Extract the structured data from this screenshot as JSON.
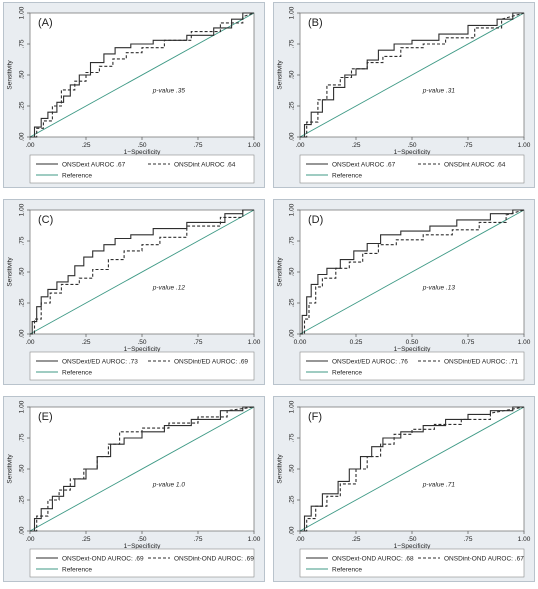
{
  "chart_data": [
    {
      "type": "line",
      "panel_label": "(A)",
      "xlabel": "1−Specificity",
      "ylabel": "Sensitivity",
      "xticks": [
        ".00",
        ".25",
        ".50",
        ".75",
        "1.00"
      ],
      "yticks": [
        ".00",
        ".25",
        ".50",
        ".75",
        "1.00"
      ],
      "xlim": [
        0,
        1
      ],
      "ylim": [
        0,
        1
      ],
      "grid": false,
      "legend_position": "bottom",
      "annotation": "p-value .35",
      "series": [
        {
          "name": "ONSDext AUROC .67",
          "style": "solid",
          "color": "#2e2e2e",
          "x": [
            0,
            0.02,
            0.02,
            0.05,
            0.05,
            0.08,
            0.08,
            0.12,
            0.12,
            0.15,
            0.15,
            0.18,
            0.18,
            0.22,
            0.22,
            0.27,
            0.27,
            0.33,
            0.33,
            0.38,
            0.38,
            0.45,
            0.45,
            0.55,
            0.55,
            0.7,
            0.7,
            0.82,
            0.82,
            0.9,
            0.9,
            0.95,
            0.95,
            1
          ],
          "y": [
            0,
            0,
            0.08,
            0.08,
            0.15,
            0.15,
            0.2,
            0.2,
            0.28,
            0.28,
            0.33,
            0.33,
            0.42,
            0.42,
            0.5,
            0.5,
            0.6,
            0.6,
            0.67,
            0.67,
            0.72,
            0.72,
            0.75,
            0.75,
            0.78,
            0.78,
            0.82,
            0.82,
            0.88,
            0.88,
            0.95,
            0.95,
            1,
            1
          ]
        },
        {
          "name": "ONSDint AUROC .64",
          "style": "dashed",
          "color": "#2e2e2e",
          "x": [
            0,
            0.03,
            0.03,
            0.06,
            0.06,
            0.1,
            0.1,
            0.14,
            0.14,
            0.2,
            0.2,
            0.25,
            0.25,
            0.31,
            0.31,
            0.37,
            0.37,
            0.43,
            0.43,
            0.5,
            0.5,
            0.6,
            0.6,
            0.72,
            0.72,
            0.85,
            0.85,
            0.95,
            0.95,
            1
          ],
          "y": [
            0,
            0,
            0.07,
            0.07,
            0.13,
            0.13,
            0.25,
            0.25,
            0.38,
            0.38,
            0.45,
            0.45,
            0.52,
            0.52,
            0.57,
            0.57,
            0.63,
            0.63,
            0.68,
            0.68,
            0.72,
            0.72,
            0.78,
            0.78,
            0.85,
            0.85,
            0.92,
            0.92,
            0.97,
            1
          ]
        },
        {
          "name": "Reference",
          "style": "solid",
          "color": "#3f9a86",
          "x": [
            0,
            1
          ],
          "y": [
            0,
            1
          ]
        }
      ]
    },
    {
      "type": "line",
      "panel_label": "(B)",
      "xlabel": "1−Specificity",
      "ylabel": "Sensitivity",
      "xticks": [
        ".00",
        ".25",
        ".50",
        ".75",
        "1.00"
      ],
      "yticks": [
        ".00",
        ".25",
        ".50",
        ".75",
        "1.00"
      ],
      "xlim": [
        0,
        1
      ],
      "ylim": [
        0,
        1
      ],
      "grid": false,
      "legend_position": "bottom",
      "annotation": "p-value .31",
      "series": [
        {
          "name": "ONSDext AUROC .67",
          "style": "solid",
          "color": "#2e2e2e",
          "x": [
            0,
            0.02,
            0.02,
            0.05,
            0.05,
            0.1,
            0.1,
            0.15,
            0.15,
            0.2,
            0.2,
            0.25,
            0.25,
            0.3,
            0.3,
            0.35,
            0.35,
            0.42,
            0.42,
            0.5,
            0.5,
            0.62,
            0.62,
            0.75,
            0.75,
            0.88,
            0.88,
            0.95,
            0.95,
            1
          ],
          "y": [
            0,
            0,
            0.1,
            0.1,
            0.2,
            0.2,
            0.3,
            0.3,
            0.4,
            0.4,
            0.5,
            0.5,
            0.55,
            0.55,
            0.62,
            0.62,
            0.7,
            0.7,
            0.75,
            0.75,
            0.78,
            0.78,
            0.83,
            0.83,
            0.9,
            0.9,
            0.95,
            0.95,
            1,
            1
          ]
        },
        {
          "name": "ONSDint AUROC .64",
          "style": "dashed",
          "color": "#2e2e2e",
          "x": [
            0,
            0.03,
            0.03,
            0.08,
            0.08,
            0.12,
            0.12,
            0.18,
            0.18,
            0.23,
            0.23,
            0.3,
            0.3,
            0.37,
            0.37,
            0.45,
            0.45,
            0.55,
            0.55,
            0.65,
            0.65,
            0.78,
            0.78,
            0.9,
            0.9,
            1
          ],
          "y": [
            0,
            0,
            0.12,
            0.12,
            0.3,
            0.3,
            0.42,
            0.42,
            0.48,
            0.48,
            0.55,
            0.55,
            0.6,
            0.6,
            0.65,
            0.65,
            0.72,
            0.72,
            0.75,
            0.75,
            0.8,
            0.8,
            0.88,
            0.88,
            0.95,
            1
          ]
        },
        {
          "name": "Reference",
          "style": "solid",
          "color": "#3f9a86",
          "x": [
            0,
            1
          ],
          "y": [
            0,
            1
          ]
        }
      ]
    },
    {
      "type": "line",
      "panel_label": "(C)",
      "xlabel": "1−Specificity",
      "ylabel": "Sensitivity",
      "xticks": [
        ".00",
        ".25",
        ".50",
        ".75",
        "1.00"
      ],
      "yticks": [
        ".00",
        ".25",
        ".50",
        ".75",
        "1.00"
      ],
      "xlim": [
        0,
        1
      ],
      "ylim": [
        0,
        1
      ],
      "grid": false,
      "legend_position": "bottom",
      "annotation": "p-value .12",
      "series": [
        {
          "name": "ONSDext/ED AUROC: .73",
          "style": "solid",
          "color": "#2e2e2e",
          "x": [
            0,
            0.01,
            0.01,
            0.03,
            0.03,
            0.05,
            0.05,
            0.08,
            0.08,
            0.12,
            0.12,
            0.17,
            0.17,
            0.2,
            0.2,
            0.24,
            0.24,
            0.28,
            0.28,
            0.33,
            0.33,
            0.38,
            0.38,
            0.45,
            0.45,
            0.55,
            0.55,
            0.7,
            0.7,
            0.87,
            0.87,
            0.95,
            0.95,
            1
          ],
          "y": [
            0,
            0,
            0.1,
            0.1,
            0.22,
            0.22,
            0.3,
            0.3,
            0.36,
            0.36,
            0.42,
            0.42,
            0.47,
            0.47,
            0.55,
            0.55,
            0.62,
            0.62,
            0.67,
            0.67,
            0.72,
            0.72,
            0.77,
            0.77,
            0.8,
            0.8,
            0.85,
            0.85,
            0.9,
            0.9,
            0.97,
            0.97,
            1,
            1
          ]
        },
        {
          "name": "ONSDint/ED AUROC: .69",
          "style": "dashed",
          "color": "#2e2e2e",
          "x": [
            0,
            0.02,
            0.02,
            0.05,
            0.05,
            0.09,
            0.09,
            0.14,
            0.14,
            0.22,
            0.22,
            0.28,
            0.28,
            0.35,
            0.35,
            0.42,
            0.42,
            0.5,
            0.5,
            0.58,
            0.58,
            0.7,
            0.7,
            0.85,
            0.85,
            0.95,
            0.95,
            1
          ],
          "y": [
            0,
            0,
            0.12,
            0.12,
            0.25,
            0.25,
            0.33,
            0.33,
            0.4,
            0.4,
            0.45,
            0.45,
            0.52,
            0.52,
            0.6,
            0.6,
            0.67,
            0.67,
            0.72,
            0.72,
            0.78,
            0.78,
            0.87,
            0.87,
            0.94,
            0.94,
            1,
            1
          ]
        },
        {
          "name": "Reference",
          "style": "solid",
          "color": "#3f9a86",
          "x": [
            0,
            1
          ],
          "y": [
            0,
            1
          ]
        }
      ]
    },
    {
      "type": "line",
      "panel_label": "(D)",
      "xlabel": "1−Specificity",
      "ylabel": "Sensitivity",
      "xticks": [
        "0.00",
        "0.25",
        "0.50",
        "0.75",
        "1.00"
      ],
      "yticks": [
        ".00",
        ".25",
        ".50",
        ".75",
        "1.00"
      ],
      "xlim": [
        0,
        1
      ],
      "ylim": [
        0,
        1
      ],
      "grid": false,
      "legend_position": "bottom",
      "annotation": "p-value .13",
      "series": [
        {
          "name": "ONSDext/ED AUROC: .76",
          "style": "solid",
          "color": "#2e2e2e",
          "x": [
            0,
            0.01,
            0.01,
            0.03,
            0.03,
            0.05,
            0.05,
            0.08,
            0.08,
            0.12,
            0.12,
            0.18,
            0.18,
            0.24,
            0.24,
            0.3,
            0.3,
            0.36,
            0.36,
            0.45,
            0.45,
            0.58,
            0.58,
            0.7,
            0.7,
            0.85,
            0.85,
            0.95,
            0.95,
            1
          ],
          "y": [
            0,
            0,
            0.15,
            0.15,
            0.3,
            0.3,
            0.4,
            0.4,
            0.48,
            0.48,
            0.53,
            0.53,
            0.6,
            0.6,
            0.67,
            0.67,
            0.73,
            0.73,
            0.8,
            0.8,
            0.83,
            0.83,
            0.87,
            0.87,
            0.92,
            0.92,
            0.97,
            0.97,
            1,
            1
          ]
        },
        {
          "name": "ONSDint/ED AUROC: .71",
          "style": "dashed",
          "color": "#2e2e2e",
          "x": [
            0,
            0.02,
            0.02,
            0.04,
            0.04,
            0.07,
            0.07,
            0.1,
            0.1,
            0.16,
            0.16,
            0.22,
            0.22,
            0.28,
            0.28,
            0.35,
            0.35,
            0.43,
            0.43,
            0.55,
            0.55,
            0.68,
            0.68,
            0.8,
            0.8,
            0.92,
            0.92,
            1
          ],
          "y": [
            0,
            0,
            0.12,
            0.12,
            0.25,
            0.25,
            0.38,
            0.38,
            0.45,
            0.45,
            0.53,
            0.53,
            0.58,
            0.58,
            0.65,
            0.65,
            0.72,
            0.72,
            0.76,
            0.76,
            0.8,
            0.8,
            0.84,
            0.84,
            0.9,
            0.9,
            0.96,
            1
          ]
        },
        {
          "name": "Reference",
          "style": "solid",
          "color": "#3f9a86",
          "x": [
            0,
            1
          ],
          "y": [
            0,
            1
          ]
        }
      ]
    },
    {
      "type": "line",
      "panel_label": "(E)",
      "xlabel": "1−Specificity",
      "ylabel": "Sensitivity",
      "xticks": [
        ".00",
        ".25",
        ".50",
        ".75",
        "1.00"
      ],
      "yticks": [
        ".00",
        ".25",
        ".50",
        ".75",
        "1.00"
      ],
      "xlim": [
        0,
        1
      ],
      "ylim": [
        0,
        1
      ],
      "grid": false,
      "legend_position": "bottom",
      "annotation": "p-value 1.0",
      "series": [
        {
          "name": "ONSDext-OND AUROC: .69",
          "style": "solid",
          "color": "#2e2e2e",
          "x": [
            0,
            0.02,
            0.02,
            0.05,
            0.05,
            0.1,
            0.1,
            0.15,
            0.15,
            0.2,
            0.2,
            0.25,
            0.25,
            0.3,
            0.3,
            0.36,
            0.36,
            0.42,
            0.42,
            0.5,
            0.5,
            0.6,
            0.6,
            0.72,
            0.72,
            0.85,
            0.85,
            0.95,
            0.95,
            1
          ],
          "y": [
            0,
            0,
            0.1,
            0.1,
            0.18,
            0.18,
            0.28,
            0.28,
            0.36,
            0.36,
            0.42,
            0.42,
            0.5,
            0.5,
            0.6,
            0.6,
            0.7,
            0.7,
            0.75,
            0.75,
            0.8,
            0.8,
            0.85,
            0.85,
            0.9,
            0.9,
            0.97,
            0.97,
            1,
            1
          ]
        },
        {
          "name": "ONSDint-OND AUROC: .69",
          "style": "dashed",
          "color": "#2e2e2e",
          "x": [
            0,
            0.03,
            0.03,
            0.08,
            0.08,
            0.13,
            0.13,
            0.18,
            0.18,
            0.24,
            0.24,
            0.3,
            0.3,
            0.35,
            0.35,
            0.4,
            0.4,
            0.5,
            0.5,
            0.62,
            0.62,
            0.75,
            0.75,
            0.88,
            0.88,
            1
          ],
          "y": [
            0,
            0,
            0.12,
            0.12,
            0.25,
            0.25,
            0.33,
            0.33,
            0.42,
            0.42,
            0.5,
            0.5,
            0.6,
            0.6,
            0.7,
            0.7,
            0.8,
            0.8,
            0.83,
            0.83,
            0.87,
            0.87,
            0.92,
            0.92,
            0.97,
            1
          ]
        },
        {
          "name": "Reference",
          "style": "solid",
          "color": "#3f9a86",
          "x": [
            0,
            1
          ],
          "y": [
            0,
            1
          ]
        }
      ]
    },
    {
      "type": "line",
      "panel_label": "(F)",
      "xlabel": "1−Specificity",
      "ylabel": "Sensitivity",
      "xticks": [
        ".00",
        ".25",
        ".50",
        ".75",
        "1.00"
      ],
      "yticks": [
        ".00",
        ".25",
        ".50",
        ".75",
        "1.00"
      ],
      "xlim": [
        0,
        1
      ],
      "ylim": [
        0,
        1
      ],
      "grid": false,
      "legend_position": "bottom",
      "annotation": "p-value .71",
      "series": [
        {
          "name": "ONSDext-OND AUROC: .68",
          "style": "solid",
          "color": "#2e2e2e",
          "x": [
            0,
            0.02,
            0.02,
            0.05,
            0.05,
            0.1,
            0.1,
            0.17,
            0.17,
            0.22,
            0.22,
            0.27,
            0.27,
            0.32,
            0.32,
            0.37,
            0.37,
            0.45,
            0.45,
            0.55,
            0.55,
            0.65,
            0.65,
            0.75,
            0.75,
            0.85,
            0.85,
            0.95,
            0.95,
            1
          ],
          "y": [
            0,
            0,
            0.12,
            0.12,
            0.2,
            0.2,
            0.3,
            0.3,
            0.4,
            0.4,
            0.5,
            0.5,
            0.6,
            0.6,
            0.68,
            0.68,
            0.75,
            0.75,
            0.8,
            0.8,
            0.85,
            0.85,
            0.9,
            0.9,
            0.94,
            0.94,
            0.97,
            0.97,
            1,
            1
          ]
        },
        {
          "name": "ONSDint-OND AUROC: .67",
          "style": "dashed",
          "color": "#2e2e2e",
          "x": [
            0,
            0.03,
            0.03,
            0.07,
            0.07,
            0.12,
            0.12,
            0.18,
            0.18,
            0.25,
            0.25,
            0.3,
            0.3,
            0.36,
            0.36,
            0.42,
            0.42,
            0.5,
            0.5,
            0.6,
            0.6,
            0.72,
            0.72,
            0.85,
            0.85,
            1
          ],
          "y": [
            0,
            0,
            0.1,
            0.1,
            0.2,
            0.2,
            0.28,
            0.28,
            0.38,
            0.38,
            0.5,
            0.5,
            0.6,
            0.6,
            0.7,
            0.7,
            0.78,
            0.78,
            0.82,
            0.82,
            0.86,
            0.86,
            0.9,
            0.9,
            0.95,
            1
          ]
        },
        {
          "name": "Reference",
          "style": "solid",
          "color": "#3f9a86",
          "x": [
            0,
            1
          ],
          "y": [
            0,
            1
          ]
        }
      ]
    }
  ]
}
